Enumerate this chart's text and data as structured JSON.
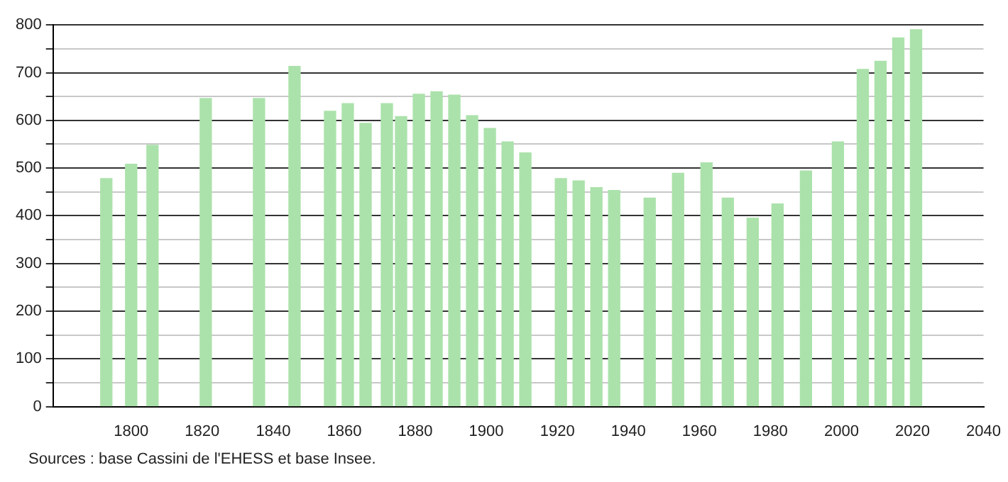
{
  "chart_data": {
    "type": "bar",
    "x": [
      1793,
      1800,
      1806,
      1821,
      1836,
      1846,
      1856,
      1861,
      1866,
      1872,
      1876,
      1881,
      1886,
      1891,
      1896,
      1901,
      1906,
      1911,
      1921,
      1926,
      1931,
      1936,
      1946,
      1954,
      1962,
      1968,
      1975,
      1982,
      1990,
      1999,
      2006,
      2011,
      2016,
      2021
    ],
    "values": [
      478,
      508,
      548,
      646,
      646,
      713,
      619,
      635,
      594,
      635,
      608,
      655,
      660,
      653,
      610,
      583,
      555,
      532,
      478,
      473,
      459,
      453,
      437,
      489,
      511,
      437,
      395,
      425,
      494,
      555,
      707,
      724,
      773,
      790
    ],
    "color": "#abe2ab",
    "xlim": [
      1778,
      2040
    ],
    "xticks": [
      1800,
      1820,
      1840,
      1860,
      1880,
      1900,
      1920,
      1940,
      1960,
      1980,
      2000,
      2020,
      2040
    ],
    "ylim": [
      0,
      800
    ],
    "yticks": [
      0,
      {
        "value": 50,
        "label": null
      },
      100,
      {
        "value": 150,
        "label": null
      },
      200,
      {
        "value": 250,
        "label": null
      },
      300,
      {
        "value": 350,
        "label": null
      },
      400,
      {
        "value": 450,
        "label": null
      },
      500,
      {
        "value": 550,
        "label": null
      },
      600,
      {
        "value": 650,
        "label": null
      },
      700,
      {
        "value": 750,
        "label": null
      },
      800
    ],
    "grid": "y",
    "annotations": [
      "Sources : base Cassini de l'EHESS et base Insee."
    ]
  }
}
